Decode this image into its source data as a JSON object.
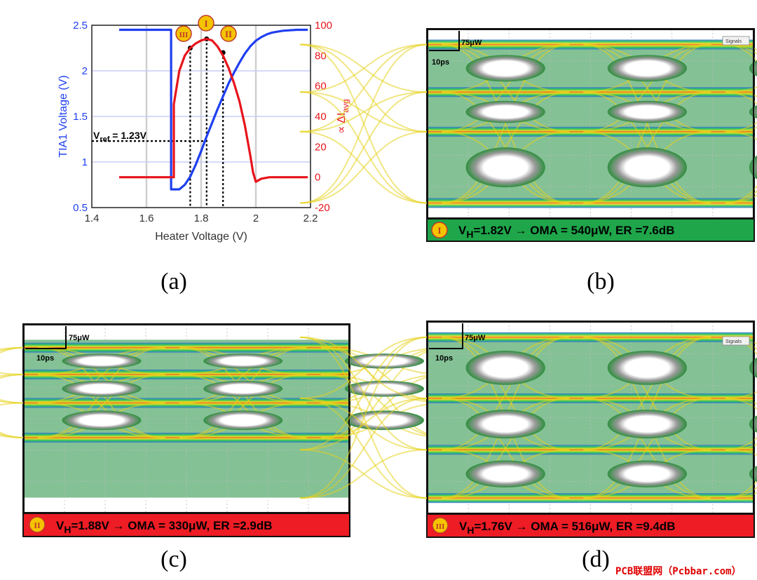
{
  "chart_data": [
    {
      "type": "line",
      "xlabel": "Heater Voltage (V)",
      "ylabel": "TIA1 Voltage (V)",
      "y2label": "∝ ΔI",
      "y2label_sub": "avg",
      "xlim": [
        1.4,
        2.2
      ],
      "ylim": [
        0.5,
        2.5
      ],
      "y2lim": [
        -20,
        100
      ],
      "x_ticks": [
        "1.4",
        "1.6",
        "1.8",
        "2",
        "2.2"
      ],
      "y_ticks": [
        "0.5",
        "1",
        "1.5",
        "2",
        "2.5"
      ],
      "y2_ticks": [
        "-20",
        "0",
        "20",
        "40",
        "60",
        "80",
        "100"
      ],
      "grid": true,
      "series": [
        {
          "axis": "left",
          "color": "#1f3ff0",
          "points": [
            [
              1.5,
              2.45
            ],
            [
              1.6,
              2.45
            ],
            [
              1.69,
              2.45
            ],
            [
              1.69,
              0.7
            ],
            [
              1.72,
              0.7
            ],
            [
              1.74,
              0.75
            ],
            [
              1.76,
              0.84
            ],
            [
              1.78,
              0.97
            ],
            [
              1.8,
              1.12
            ],
            [
              1.82,
              1.28
            ],
            [
              1.84,
              1.43
            ],
            [
              1.86,
              1.58
            ],
            [
              1.88,
              1.72
            ],
            [
              1.9,
              1.86
            ],
            [
              1.92,
              1.98
            ],
            [
              1.94,
              2.09
            ],
            [
              1.96,
              2.19
            ],
            [
              1.98,
              2.27
            ],
            [
              2.0,
              2.33
            ],
            [
              2.02,
              2.37
            ],
            [
              2.04,
              2.4
            ],
            [
              2.06,
              2.42
            ],
            [
              2.08,
              2.43
            ],
            [
              2.1,
              2.44
            ],
            [
              2.15,
              2.45
            ],
            [
              2.19,
              2.45
            ]
          ]
        },
        {
          "axis": "right",
          "color": "#e8141b",
          "points": [
            [
              1.5,
              0
            ],
            [
              1.6,
              0
            ],
            [
              1.69,
              0
            ],
            [
              1.7,
              0
            ],
            [
              1.7,
              48
            ],
            [
              1.72,
              70
            ],
            [
              1.74,
              80
            ],
            [
              1.76,
              85
            ],
            [
              1.78,
              88
            ],
            [
              1.8,
              90
            ],
            [
              1.82,
              91
            ],
            [
              1.84,
              90
            ],
            [
              1.86,
              86
            ],
            [
              1.88,
              80
            ],
            [
              1.9,
              72
            ],
            [
              1.92,
              62
            ],
            [
              1.94,
              50
            ],
            [
              1.96,
              34
            ],
            [
              1.98,
              14
            ],
            [
              1.99,
              3
            ],
            [
              2.0,
              -3
            ],
            [
              2.02,
              -1
            ],
            [
              2.05,
              0
            ],
            [
              2.1,
              0
            ],
            [
              2.19,
              0
            ]
          ]
        }
      ],
      "annotations": {
        "vref_label": "V",
        "vref_sub": "ref",
        "vref_value": " = 1.23V",
        "vref_level": 1.23,
        "markers": [
          {
            "label": "I",
            "x": 1.82,
            "y2": 91
          },
          {
            "label": "II",
            "x": 1.88,
            "y2": 82
          },
          {
            "label": "III",
            "x": 1.76,
            "y2": 85
          }
        ]
      }
    }
  ],
  "panels": {
    "a": {
      "label": "(a)"
    },
    "b": {
      "label": "(b)",
      "marker": "I",
      "caption_pre": "V",
      "caption_sub": "H",
      "caption_post": "=1.82V → OMA = 540μW, ER =7.6dB",
      "caption_color": "#1fa64a",
      "scale_y": "75μW",
      "scale_x": "10ps",
      "corner_text": "Signals"
    },
    "c": {
      "label": "(c)",
      "marker": "II",
      "caption_pre": "V",
      "caption_sub": "H",
      "caption_post": "=1.88V → OMA = 330μW, ER =2.9dB",
      "caption_color": "#ee1c24",
      "scale_y": "75μW",
      "scale_x": "10ps"
    },
    "d": {
      "label": "(d)",
      "marker": "III",
      "caption_pre": "V",
      "caption_sub": "H",
      "caption_post": "=1.76V → OMA = 516μW, ER =9.4dB",
      "caption_color": "#ee1c24",
      "scale_y": "75μW",
      "scale_x": "10ps",
      "corner_text": "Signals"
    }
  },
  "watermark": "PCB联盟网（Pcbbar.com）",
  "colors": {
    "left_axis": "#1f3ff0",
    "right_axis": "#e8141b",
    "marker_fill": "#f5c400"
  }
}
